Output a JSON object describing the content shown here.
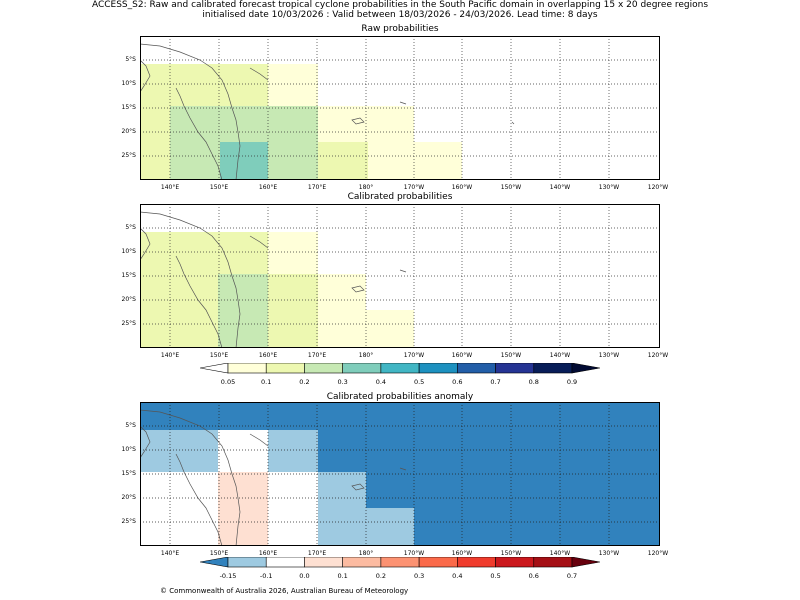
{
  "header": {
    "line1": "ACCESS_S2: Raw and calibrated forecast tropical cyclone probabilities in the South Pacific domain in overlapping 15 x 20 degree regions",
    "line2": "initialised date 10/03/2026 :  Valid between 18/03/2026 - 24/03/2026. Lead time: 8 days"
  },
  "panels": [
    {
      "id": "raw",
      "title": "Raw probabilities"
    },
    {
      "id": "cal",
      "title": "Calibrated probabilities"
    },
    {
      "id": "anom",
      "title": "Calibrated probabilities anomaly"
    }
  ],
  "axes": {
    "lon_labels": [
      "140°E",
      "150°E",
      "160°E",
      "170°E",
      "180°",
      "170°W",
      "160°W",
      "150°W",
      "140°W",
      "130°W",
      "120°W"
    ],
    "lat_labels": [
      "5°S",
      "10°S",
      "15°S",
      "20°S",
      "25°S"
    ]
  },
  "colorbars": {
    "prob": {
      "ticks": [
        "0.05",
        "0.1",
        "0.2",
        "0.3",
        "0.4",
        "0.5",
        "0.6",
        "0.7",
        "0.8",
        "0.9"
      ],
      "colors": [
        "#ffffff",
        "#ffffd9",
        "#edf8b1",
        "#c7e9b4",
        "#7fcdbb",
        "#41b6c4",
        "#1d91c0",
        "#225ea8",
        "#253494",
        "#081d58",
        "#020b33"
      ]
    },
    "anom": {
      "ticks": [
        "-0.15",
        "-0.1",
        "0.0",
        "0.1",
        "0.2",
        "0.3",
        "0.4",
        "0.5",
        "0.6",
        "0.7"
      ],
      "colors": [
        "#3182bd",
        "#9ecae1",
        "#ffffff",
        "#fee0d2",
        "#fcbba1",
        "#fc9272",
        "#fb6a4a",
        "#ef3b2c",
        "#cb181d",
        "#a50f15",
        "#67000d"
      ]
    }
  },
  "footer": "© Commonwealth of Australia 2026, Australian Bureau of Meteorology"
}
